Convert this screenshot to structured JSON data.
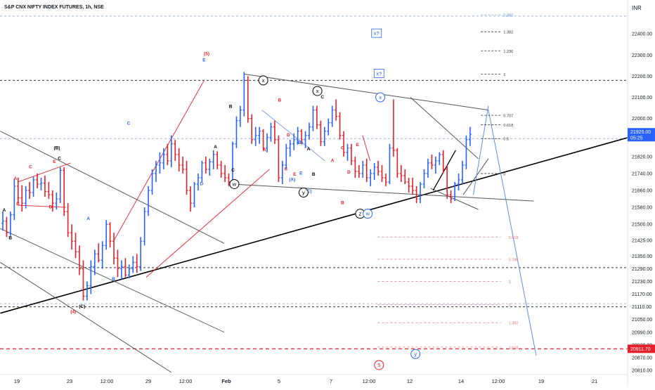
{
  "header": {
    "title": "S&P CNX NIFTY INDEX FUTURES, 1h, NSE",
    "currency": "INR"
  },
  "price_axis": {
    "ticks": [
      "22400.00",
      "22300.00",
      "22200.00",
      "22100.00",
      "22000.00",
      "21900.00",
      "21820.00",
      "21740.00",
      "21660.00",
      "21580.00",
      "21500.00",
      "21425.00",
      "21350.00",
      "21290.00",
      "21230.00",
      "21170.00",
      "21110.00",
      "21050.00",
      "20990.00",
      "20930.00",
      "20870.00",
      "20810.00"
    ],
    "current_price": "21925.00",
    "countdown": "05:25",
    "marked_price": "20911.70"
  },
  "time_axis": {
    "ticks": [
      "19",
      "23",
      "12:00",
      "29",
      "12:00",
      "Feb",
      "5",
      "7",
      "12:00",
      "12",
      "14",
      "12:00",
      "19",
      "21"
    ]
  },
  "colors": {
    "up": "#2962ff",
    "down": "#e5202a",
    "trend": "#000000",
    "channel": "#555555",
    "fib_blue": "#5b8ee8",
    "fib_red": "#e57373"
  },
  "chart_data": {
    "type": "candlestick",
    "title": "S&P CNX NIFTY INDEX FUTURES, 1h, NSE",
    "currency": "INR",
    "y_range": [
      20790,
      22560
    ],
    "x_range": [
      0,
      137
    ],
    "x_tick_labels": [
      "19",
      "23",
      "12:00",
      "29",
      "12:00",
      "Feb",
      "5",
      "7",
      "12:00",
      "12",
      "14",
      "12:00",
      "19",
      "21"
    ],
    "last_price": 21925.0,
    "marked_level": 20911.7,
    "horizontal_levels": [
      22484,
      22180,
      21905,
      21295,
      21125,
      21110,
      20911.7
    ],
    "candles": [
      {
        "o": 21505,
        "h": 21560,
        "l": 21470,
        "c": 21515
      },
      {
        "o": 21515,
        "h": 21535,
        "l": 21440,
        "c": 21460
      },
      {
        "o": 21460,
        "h": 21560,
        "l": 21445,
        "c": 21545
      },
      {
        "o": 21545,
        "h": 21715,
        "l": 21520,
        "c": 21680
      },
      {
        "o": 21680,
        "h": 21720,
        "l": 21600,
        "c": 21625
      },
      {
        "o": 21625,
        "h": 21685,
        "l": 21560,
        "c": 21600
      },
      {
        "o": 21600,
        "h": 21680,
        "l": 21575,
        "c": 21660
      },
      {
        "o": 21660,
        "h": 21700,
        "l": 21620,
        "c": 21650
      },
      {
        "o": 21650,
        "h": 21725,
        "l": 21630,
        "c": 21710
      },
      {
        "o": 21710,
        "h": 21740,
        "l": 21670,
        "c": 21690
      },
      {
        "o": 21690,
        "h": 21720,
        "l": 21660,
        "c": 21695
      },
      {
        "o": 21695,
        "h": 21730,
        "l": 21630,
        "c": 21655
      },
      {
        "o": 21655,
        "h": 21700,
        "l": 21620,
        "c": 21640
      },
      {
        "o": 21640,
        "h": 21660,
        "l": 21560,
        "c": 21600
      },
      {
        "o": 21600,
        "h": 21650,
        "l": 21570,
        "c": 21620
      },
      {
        "o": 21620,
        "h": 21770,
        "l": 21600,
        "c": 21755
      },
      {
        "o": 21755,
        "h": 21770,
        "l": 21540,
        "c": 21560
      },
      {
        "o": 21560,
        "h": 21600,
        "l": 21440,
        "c": 21460
      },
      {
        "o": 21460,
        "h": 21500,
        "l": 21380,
        "c": 21420
      },
      {
        "o": 21420,
        "h": 21460,
        "l": 21340,
        "c": 21370
      },
      {
        "o": 21370,
        "h": 21400,
        "l": 21260,
        "c": 21290
      },
      {
        "o": 21290,
        "h": 21330,
        "l": 21140,
        "c": 21160
      },
      {
        "o": 21160,
        "h": 21230,
        "l": 21140,
        "c": 21210
      },
      {
        "o": 21210,
        "h": 21330,
        "l": 21170,
        "c": 21300
      },
      {
        "o": 21300,
        "h": 21380,
        "l": 21260,
        "c": 21360
      },
      {
        "o": 21360,
        "h": 21410,
        "l": 21320,
        "c": 21330
      },
      {
        "o": 21330,
        "h": 21420,
        "l": 21290,
        "c": 21400
      },
      {
        "o": 21400,
        "h": 21520,
        "l": 21380,
        "c": 21500
      },
      {
        "o": 21500,
        "h": 21510,
        "l": 21390,
        "c": 21420
      },
      {
        "o": 21420,
        "h": 21460,
        "l": 21310,
        "c": 21340
      },
      {
        "o": 21340,
        "h": 21380,
        "l": 21250,
        "c": 21290
      },
      {
        "o": 21290,
        "h": 21330,
        "l": 21240,
        "c": 21300
      },
      {
        "o": 21300,
        "h": 21340,
        "l": 21250,
        "c": 21260
      },
      {
        "o": 21260,
        "h": 21310,
        "l": 21245,
        "c": 21290
      },
      {
        "o": 21290,
        "h": 21350,
        "l": 21270,
        "c": 21320
      },
      {
        "o": 21320,
        "h": 21360,
        "l": 21270,
        "c": 21300
      },
      {
        "o": 21300,
        "h": 21440,
        "l": 21280,
        "c": 21420
      },
      {
        "o": 21420,
        "h": 21580,
        "l": 21400,
        "c": 21560
      },
      {
        "o": 21560,
        "h": 21680,
        "l": 21540,
        "c": 21660
      },
      {
        "o": 21660,
        "h": 21760,
        "l": 21640,
        "c": 21740
      },
      {
        "o": 21740,
        "h": 21800,
        "l": 21700,
        "c": 21780
      },
      {
        "o": 21780,
        "h": 21840,
        "l": 21740,
        "c": 21790
      },
      {
        "o": 21790,
        "h": 21860,
        "l": 21760,
        "c": 21830
      },
      {
        "o": 21830,
        "h": 21880,
        "l": 21780,
        "c": 21800
      },
      {
        "o": 21800,
        "h": 21920,
        "l": 21770,
        "c": 21880
      },
      {
        "o": 21880,
        "h": 21900,
        "l": 21800,
        "c": 21830
      },
      {
        "o": 21830,
        "h": 21860,
        "l": 21750,
        "c": 21780
      },
      {
        "o": 21780,
        "h": 21820,
        "l": 21740,
        "c": 21760
      },
      {
        "o": 21760,
        "h": 21800,
        "l": 21640,
        "c": 21660
      },
      {
        "o": 21660,
        "h": 21680,
        "l": 21560,
        "c": 21600
      },
      {
        "o": 21600,
        "h": 21700,
        "l": 21580,
        "c": 21690
      },
      {
        "o": 21690,
        "h": 21740,
        "l": 21660,
        "c": 21720
      },
      {
        "o": 21720,
        "h": 21800,
        "l": 21700,
        "c": 21790
      },
      {
        "o": 21790,
        "h": 21820,
        "l": 21740,
        "c": 21760
      },
      {
        "o": 21760,
        "h": 21810,
        "l": 21730,
        "c": 21795
      },
      {
        "o": 21795,
        "h": 21850,
        "l": 21760,
        "c": 21830
      },
      {
        "o": 21830,
        "h": 21845,
        "l": 21760,
        "c": 21780
      },
      {
        "o": 21780,
        "h": 21800,
        "l": 21720,
        "c": 21740
      },
      {
        "o": 21740,
        "h": 21780,
        "l": 21700,
        "c": 21720
      },
      {
        "o": 21720,
        "h": 21740,
        "l": 21680,
        "c": 21700
      },
      {
        "o": 21700,
        "h": 21890,
        "l": 21690,
        "c": 21880
      },
      {
        "o": 21880,
        "h": 22010,
        "l": 21860,
        "c": 21990
      },
      {
        "o": 21990,
        "h": 22060,
        "l": 21960,
        "c": 22040
      },
      {
        "o": 22040,
        "h": 22220,
        "l": 22010,
        "c": 22180
      },
      {
        "o": 22180,
        "h": 22200,
        "l": 21980,
        "c": 22000
      },
      {
        "o": 22000,
        "h": 22020,
        "l": 21880,
        "c": 21900
      },
      {
        "o": 21900,
        "h": 21960,
        "l": 21870,
        "c": 21920
      },
      {
        "o": 21920,
        "h": 21960,
        "l": 21880,
        "c": 21940
      },
      {
        "o": 21940,
        "h": 21950,
        "l": 21850,
        "c": 21860
      },
      {
        "o": 21860,
        "h": 21930,
        "l": 21840,
        "c": 21910
      },
      {
        "o": 21910,
        "h": 21980,
        "l": 21890,
        "c": 21960
      },
      {
        "o": 21960,
        "h": 21990,
        "l": 21880,
        "c": 21900
      },
      {
        "o": 21900,
        "h": 21920,
        "l": 21700,
        "c": 21720
      },
      {
        "o": 21720,
        "h": 21800,
        "l": 21690,
        "c": 21780
      },
      {
        "o": 21780,
        "h": 21880,
        "l": 21760,
        "c": 21860
      },
      {
        "o": 21860,
        "h": 21900,
        "l": 21820,
        "c": 21880
      },
      {
        "o": 21880,
        "h": 21930,
        "l": 21850,
        "c": 21900
      },
      {
        "o": 21900,
        "h": 21960,
        "l": 21880,
        "c": 21940
      },
      {
        "o": 21940,
        "h": 21950,
        "l": 21880,
        "c": 21900
      },
      {
        "o": 21900,
        "h": 21940,
        "l": 21860,
        "c": 21920
      },
      {
        "o": 21920,
        "h": 21980,
        "l": 21900,
        "c": 21960
      },
      {
        "o": 21960,
        "h": 22060,
        "l": 21940,
        "c": 22040
      },
      {
        "o": 22040,
        "h": 22060,
        "l": 21950,
        "c": 21970
      },
      {
        "o": 21970,
        "h": 21990,
        "l": 21870,
        "c": 21890
      },
      {
        "o": 21890,
        "h": 21960,
        "l": 21870,
        "c": 21940
      },
      {
        "o": 21940,
        "h": 22000,
        "l": 21920,
        "c": 21980
      },
      {
        "o": 21980,
        "h": 22060,
        "l": 21960,
        "c": 22040
      },
      {
        "o": 22040,
        "h": 22090,
        "l": 21990,
        "c": 22010
      },
      {
        "o": 22010,
        "h": 22030,
        "l": 21900,
        "c": 21920
      },
      {
        "o": 21920,
        "h": 21940,
        "l": 21820,
        "c": 21840
      },
      {
        "o": 21840,
        "h": 21880,
        "l": 21800,
        "c": 21860
      },
      {
        "o": 21860,
        "h": 21880,
        "l": 21780,
        "c": 21800
      },
      {
        "o": 21800,
        "h": 21820,
        "l": 21720,
        "c": 21750
      },
      {
        "o": 21750,
        "h": 21780,
        "l": 21720,
        "c": 21740
      },
      {
        "o": 21740,
        "h": 21800,
        "l": 21720,
        "c": 21780
      },
      {
        "o": 21780,
        "h": 21810,
        "l": 21700,
        "c": 21720
      },
      {
        "o": 21720,
        "h": 21760,
        "l": 21680,
        "c": 21740
      },
      {
        "o": 21740,
        "h": 21790,
        "l": 21710,
        "c": 21770
      },
      {
        "o": 21770,
        "h": 21800,
        "l": 21730,
        "c": 21750
      },
      {
        "o": 21750,
        "h": 21780,
        "l": 21700,
        "c": 21720
      },
      {
        "o": 21720,
        "h": 21740,
        "l": 21680,
        "c": 21700
      },
      {
        "o": 21700,
        "h": 21880,
        "l": 21690,
        "c": 21860
      },
      {
        "o": 21860,
        "h": 22090,
        "l": 21820,
        "c": 21850
      },
      {
        "o": 21850,
        "h": 21860,
        "l": 21720,
        "c": 21740
      },
      {
        "o": 21740,
        "h": 21780,
        "l": 21700,
        "c": 21730
      },
      {
        "o": 21730,
        "h": 21760,
        "l": 21690,
        "c": 21700
      },
      {
        "o": 21700,
        "h": 21720,
        "l": 21650,
        "c": 21680
      },
      {
        "o": 21680,
        "h": 21720,
        "l": 21640,
        "c": 21660
      },
      {
        "o": 21660,
        "h": 21680,
        "l": 21600,
        "c": 21620
      },
      {
        "o": 21620,
        "h": 21700,
        "l": 21600,
        "c": 21690
      },
      {
        "o": 21690,
        "h": 21760,
        "l": 21670,
        "c": 21740
      },
      {
        "o": 21740,
        "h": 21810,
        "l": 21720,
        "c": 21790
      },
      {
        "o": 21790,
        "h": 21830,
        "l": 21760,
        "c": 21780
      },
      {
        "o": 21780,
        "h": 21820,
        "l": 21740,
        "c": 21800
      },
      {
        "o": 21800,
        "h": 21840,
        "l": 21780,
        "c": 21830
      },
      {
        "o": 21830,
        "h": 21850,
        "l": 21740,
        "c": 21760
      },
      {
        "o": 21760,
        "h": 21780,
        "l": 21620,
        "c": 21640
      },
      {
        "o": 21640,
        "h": 21660,
        "l": 21600,
        "c": 21620
      },
      {
        "o": 21620,
        "h": 21700,
        "l": 21610,
        "c": 21690
      },
      {
        "o": 21690,
        "h": 21740,
        "l": 21660,
        "c": 21710
      },
      {
        "o": 21710,
        "h": 21800,
        "l": 21690,
        "c": 21780
      },
      {
        "o": 21780,
        "h": 21920,
        "l": 21760,
        "c": 21900
      },
      {
        "o": 21900,
        "h": 21960,
        "l": 21870,
        "c": 21925
      }
    ]
  },
  "annotations": [
    {
      "text": "A",
      "x": 0.5,
      "y": 21560,
      "color": "#000000"
    },
    {
      "text": "B",
      "x": 3,
      "y": 21430,
      "color": "#000000"
    },
    {
      "text": "A",
      "x": 5,
      "y": 21710,
      "color": "#e5202a"
    },
    {
      "text": "B",
      "x": 6,
      "y": 21590,
      "color": "#e5202a"
    },
    {
      "text": "C",
      "x": 11,
      "y": 21765,
      "color": "#e5202a"
    },
    {
      "text": "D",
      "x": 19,
      "y": 21575,
      "color": "#e5202a"
    },
    {
      "text": "E",
      "x": 20.5,
      "y": 21790,
      "color": "#e5202a"
    },
    {
      "text": "(B)",
      "x": 21.5,
      "y": 21855,
      "color": "#000000"
    },
    {
      "text": "C",
      "x": 22.5,
      "y": 21805,
      "color": "#000000"
    },
    {
      "text": "A",
      "x": 34,
      "y": 21520,
      "color": "#2962ff"
    },
    {
      "text": "C",
      "x": 50,
      "y": 21970,
      "color": "#2962ff"
    },
    {
      "text": "B",
      "x": 44,
      "y": 21235,
      "color": "#2962ff"
    },
    {
      "text": "(C)",
      "x": 31.5,
      "y": 21105,
      "color": "#000000"
    },
    {
      "text": "(4)",
      "x": 28,
      "y": 21080,
      "color": "#e5202a"
    },
    {
      "text": "(5)",
      "x": 81,
      "y": 22300,
      "color": "#e5202a"
    },
    {
      "text": "E",
      "x": 80,
      "y": 22270,
      "color": "#2962ff"
    },
    {
      "text": "D",
      "x": 79,
      "y": 21685,
      "color": "#2962ff"
    },
    {
      "text": "A",
      "x": 84.5,
      "y": 21860,
      "color": "#000000"
    },
    {
      "text": "B",
      "x": 90.5,
      "y": 22050,
      "color": "#000000"
    },
    {
      "text": "C",
      "x": 91.5,
      "y": 21750,
      "color": "#000000"
    },
    {
      "text": "B",
      "x": 110,
      "y": 22080,
      "color": "#e5202a"
    },
    {
      "text": "D",
      "x": 113.5,
      "y": 21915,
      "color": "#e5202a"
    },
    {
      "text": "A",
      "x": 104,
      "y": 21845,
      "color": "#e5202a"
    },
    {
      "text": "C",
      "x": 112.5,
      "y": 21755,
      "color": "#e5202a"
    },
    {
      "text": "E",
      "x": 116,
      "y": 21730,
      "color": "#e5202a"
    },
    {
      "text": "(B)",
      "x": 118,
      "y": 21880,
      "color": "#2962ff"
    },
    {
      "text": "E",
      "x": 118.5,
      "y": 21735,
      "color": "#2962ff"
    },
    {
      "text": "(A)",
      "x": 115,
      "y": 21705,
      "color": "#2962ff"
    },
    {
      "text": "A",
      "x": 121.5,
      "y": 21850,
      "color": "#000000"
    },
    {
      "text": "B",
      "x": 123.5,
      "y": 21730,
      "color": "#000000"
    },
    {
      "text": "(C)",
      "x": 121.5,
      "y": 21650,
      "color": "#2962ff"
    },
    {
      "text": "C",
      "x": 127,
      "y": 22095,
      "color": "#000000"
    },
    {
      "text": "A",
      "x": 131,
      "y": 21795,
      "color": "#e5202a"
    },
    {
      "text": "C",
      "x": 135,
      "y": 21855,
      "color": "#e5202a"
    },
    {
      "text": "E",
      "x": 141,
      "y": 21870,
      "color": "#e5202a"
    },
    {
      "text": "B",
      "x": 135,
      "y": 21595,
      "color": "#e5202a"
    },
    {
      "text": "D",
      "x": 137.5,
      "y": 21740,
      "color": "#e5202a"
    }
  ],
  "circled_labels": [
    {
      "text": "x",
      "x": 103.5,
      "y": 22180,
      "color": "#000000"
    },
    {
      "text": "x",
      "x": 125,
      "y": 22130,
      "color": "#000000"
    },
    {
      "text": "w",
      "x": 92,
      "y": 21690,
      "color": "#000000"
    },
    {
      "text": "y",
      "x": 119.5,
      "y": 21650,
      "color": "#000000"
    },
    {
      "text": "z",
      "x": 142,
      "y": 21550,
      "color": "#000000"
    },
    {
      "text": "w",
      "x": 145,
      "y": 21550,
      "color": "#2962ff"
    },
    {
      "text": "x",
      "x": 150,
      "y": 22100,
      "color": "#2962ff"
    },
    {
      "text": "y",
      "x": 164,
      "y": 20887,
      "color": "#2962ff"
    },
    {
      "text": "5",
      "x": 149.5,
      "y": 20835,
      "color": "#e5202a"
    }
  ],
  "boxed_labels": [
    {
      "text": "x?",
      "x": 148.5,
      "y": 22400,
      "color": "#2962ff"
    },
    {
      "text": "x?",
      "x": 149.5,
      "y": 22210,
      "color": "#2962ff"
    }
  ],
  "fib_blue": [
    {
      "label": "0.382",
      "y": 22490
    },
    {
      "label": "1.382",
      "y": 22410
    },
    {
      "label": "1.236",
      "y": 22320
    },
    {
      "label": "1",
      "y": 22210
    },
    {
      "label": "0.707",
      "y": 22015
    },
    {
      "label": "0.618",
      "y": 21970
    },
    {
      "label": "0.5",
      "y": 21905
    },
    {
      "label": "0",
      "y": 21740
    }
  ],
  "fib_red": [
    {
      "label": "0.618",
      "y": 21440
    },
    {
      "label": "0.786",
      "y": 21335
    },
    {
      "label": "1",
      "y": 21230
    },
    {
      "label": "0",
      "y": 21120
    },
    {
      "label": "1.382",
      "y": 21035
    },
    {
      "label": "1.618",
      "y": 20920
    }
  ]
}
